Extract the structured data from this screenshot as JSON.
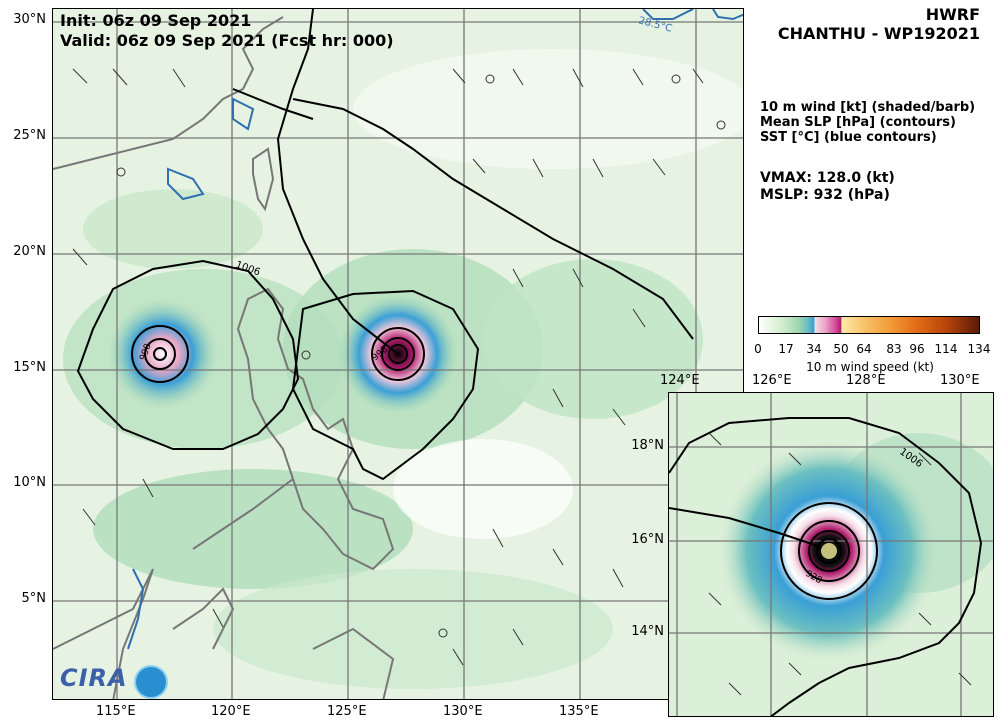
{
  "header": {
    "model": "HWRF",
    "storm": "CHANTHU - WP192021",
    "init": "Init:  06z 09 Sep 2021",
    "valid": "Valid: 06z 09 Sep 2021 (Fcst hr: 000)"
  },
  "legend": {
    "line1": "10 m wind [kt] (shaded/barb)",
    "line2": "Mean SLP [hPa] (contours)",
    "line3": "SST [°C] (blue contours)",
    "vmax": "VMAX: 128.0 (kt)",
    "mslp": "MSLP:  932 (hPa)"
  },
  "colorbar": {
    "ticks": [
      "0",
      "17",
      "34",
      "50",
      "64",
      "83",
      "96",
      "114",
      "134"
    ],
    "label": "10 m wind speed (kt)"
  },
  "main_map": {
    "lat_labels": [
      "30°N",
      "25°N",
      "20°N",
      "15°N",
      "10°N",
      "5°N"
    ],
    "lon_labels": [
      "115°E",
      "120°E",
      "125°E",
      "130°E",
      "135°E"
    ],
    "contour_labels": [
      "1006",
      "998",
      "998"
    ],
    "sst_label": "28.5°C"
  },
  "inset_map": {
    "lat_labels": [
      "18°N",
      "16°N",
      "14°N"
    ],
    "lon_labels": [
      "124°E",
      "126°E",
      "128°E",
      "130°E"
    ],
    "contour_labels": [
      "1006",
      "928"
    ]
  },
  "logo": {
    "text": "CIRA"
  }
}
